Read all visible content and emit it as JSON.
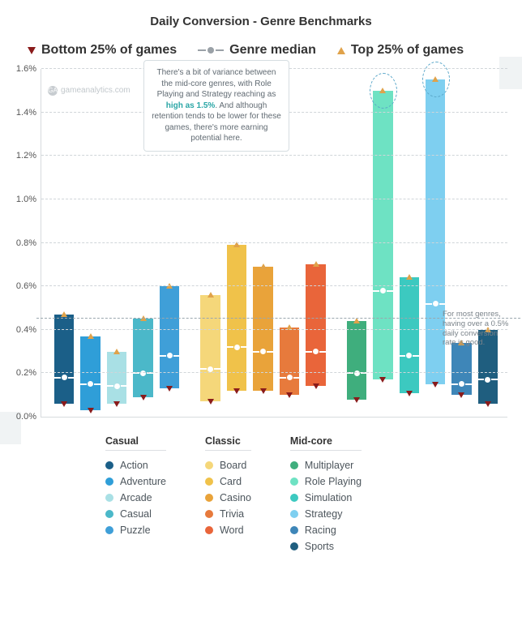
{
  "title": "Daily Conversion - Genre Benchmarks",
  "title_fontsize": 15,
  "watermark": "gameanalytics.com",
  "top_legend": {
    "bottom": "Bottom 25% of games",
    "median": "Genre median",
    "top": "Top 25% of games",
    "bottom_color": "#8a1b1b",
    "median_color": "#9aa1a7",
    "top_color": "#e0a24a"
  },
  "chart": {
    "type": "grouped-range-bar",
    "ymin": 0.0,
    "ymax": 1.6,
    "ytick_step": 0.2,
    "y_format": "percent_one_decimal",
    "grid_color": "#d7dbde",
    "reference_line": {
      "value": 0.45,
      "label": "For most genres, having over a 0.5% daily conversion rate is good."
    },
    "callout": {
      "text_pre": "There's a bit of variance between the mid-core genres, with Role Playing and Strategy reaching as ",
      "text_bold": "high as 1.5%",
      "text_post": ". And although retention tends to be lower for these games, there's more earning potential here."
    },
    "groups": [
      {
        "name": "Casual",
        "bars": [
          {
            "label": "Action",
            "color": "#1b5f88",
            "low": 0.06,
            "median": 0.18,
            "high": 0.47
          },
          {
            "label": "Adventure",
            "color": "#2f9ed8",
            "low": 0.03,
            "median": 0.15,
            "high": 0.37
          },
          {
            "label": "Arcade",
            "color": "#a9e0e5",
            "low": 0.06,
            "median": 0.14,
            "high": 0.3
          },
          {
            "label": "Casual",
            "color": "#4bb8c9",
            "low": 0.09,
            "median": 0.2,
            "high": 0.45
          },
          {
            "label": "Puzzle",
            "color": "#3f9fd8",
            "low": 0.13,
            "median": 0.28,
            "high": 0.6
          }
        ]
      },
      {
        "name": "Classic",
        "bars": [
          {
            "label": "Board",
            "color": "#f5d77a",
            "low": 0.07,
            "median": 0.22,
            "high": 0.56
          },
          {
            "label": "Card",
            "color": "#f0c24a",
            "low": 0.12,
            "median": 0.32,
            "high": 0.79
          },
          {
            "label": "Casino",
            "color": "#e9a33a",
            "low": 0.12,
            "median": 0.3,
            "high": 0.69
          },
          {
            "label": "Trivia",
            "color": "#e77a3c",
            "low": 0.1,
            "median": 0.18,
            "high": 0.41
          },
          {
            "label": "Word",
            "color": "#e9653a",
            "low": 0.14,
            "median": 0.3,
            "high": 0.7
          }
        ]
      },
      {
        "name": "Mid-core",
        "bars": [
          {
            "label": "Multiplayer",
            "color": "#3fae7d",
            "low": 0.08,
            "median": 0.2,
            "high": 0.44
          },
          {
            "label": "Role Playing",
            "color": "#6ee2c3",
            "low": 0.17,
            "median": 0.58,
            "high": 1.5
          },
          {
            "label": "Simulation",
            "color": "#3cc9c0",
            "low": 0.11,
            "median": 0.28,
            "high": 0.64
          },
          {
            "label": "Strategy",
            "color": "#7ecff0",
            "low": 0.15,
            "median": 0.52,
            "high": 1.55
          },
          {
            "label": "Racing",
            "color": "#3e86b8",
            "low": 0.1,
            "median": 0.15,
            "high": 0.34
          },
          {
            "label": "Sports",
            "color": "#1f5e7f",
            "low": 0.06,
            "median": 0.17,
            "high": 0.4
          }
        ]
      }
    ],
    "highlight_ovals": [
      {
        "group": 2,
        "bar": 1
      },
      {
        "group": 2,
        "bar": 3
      }
    ]
  }
}
